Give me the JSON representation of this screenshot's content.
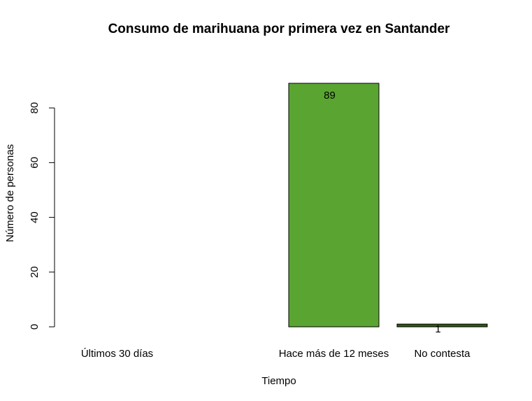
{
  "chart_data": {
    "type": "bar",
    "title": "Consumo de marihuana por primera vez en Santander",
    "xlabel": "Tiempo",
    "ylabel": "Número de personas",
    "categories": [
      "Últimos 30 días",
      "",
      "Hace más de 12 meses",
      "No contesta"
    ],
    "values": [
      0,
      0,
      89,
      1
    ],
    "data_labels": [
      "",
      "",
      "89",
      "1"
    ],
    "bar_colors": [
      "#5aa532",
      "#5aa532",
      "#5aa532",
      "#2e5a12"
    ],
    "ylim": [
      0,
      89
    ],
    "yticks": [
      0,
      20,
      40,
      60,
      80
    ],
    "grid": false
  }
}
